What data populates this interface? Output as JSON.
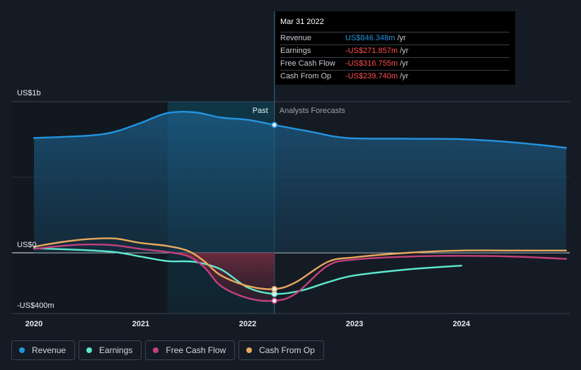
{
  "chart_data": {
    "type": "area",
    "y_unit": "US$m",
    "ylim": [
      -400,
      1000
    ],
    "xlim": [
      2019.9,
      2024.98
    ],
    "y_axis_labels": [
      {
        "label": "US$1b",
        "value": 1000
      },
      {
        "label": "US$0",
        "value": 0
      },
      {
        "label": "-US$400m",
        "value": -400
      }
    ],
    "x_tick_labels": [
      {
        "label": "2020",
        "value": 2020.0
      },
      {
        "label": "2021",
        "value": 2021.0
      },
      {
        "label": "2022",
        "value": 2022.0
      },
      {
        "label": "2023",
        "value": 2023.0
      },
      {
        "label": "2024",
        "value": 2024.0
      }
    ],
    "highlight_range": [
      2021.25,
      2022.25
    ],
    "divider_x": 2022.25,
    "past_label": "Past",
    "forecast_label": "Analysts Forecasts",
    "series": [
      {
        "name": "Revenue",
        "color": "#2394df",
        "x": [
          2020.0,
          2020.5,
          2020.75,
          2021.0,
          2021.25,
          2021.5,
          2021.75,
          2022.0,
          2022.25,
          2022.6,
          2022.93,
          2023.5,
          2024.0,
          2024.5,
          2024.98
        ],
        "y": [
          760,
          775,
          800,
          860,
          925,
          930,
          895,
          880,
          846,
          800,
          760,
          755,
          752,
          730,
          695
        ]
      },
      {
        "name": "Earnings",
        "color": "#5ee8d0",
        "x": [
          2020.0,
          2020.4,
          2020.75,
          2021.0,
          2021.25,
          2021.5,
          2021.75,
          2022.0,
          2022.25,
          2022.5,
          2022.75,
          2023.0,
          2023.5,
          2024.0
        ],
        "y": [
          30,
          20,
          5,
          -25,
          -55,
          -60,
          -110,
          -230,
          -272,
          -250,
          -195,
          -150,
          -110,
          -85
        ]
      },
      {
        "name": "Free Cash Flow",
        "color": "#c2407f",
        "x": [
          2020.0,
          2020.25,
          2020.5,
          2020.75,
          2021.0,
          2021.25,
          2021.45,
          2021.6,
          2021.75,
          2022.0,
          2022.25,
          2022.45,
          2022.75,
          2023.0,
          2023.5,
          2024.0,
          2024.5,
          2024.98
        ],
        "y": [
          25,
          45,
          55,
          50,
          25,
          5,
          -25,
          -100,
          -220,
          -300,
          -317,
          -270,
          -85,
          -45,
          -25,
          -20,
          -25,
          -40
        ]
      },
      {
        "name": "Cash From Op",
        "color": "#e9a85c",
        "x": [
          2020.0,
          2020.25,
          2020.5,
          2020.75,
          2021.0,
          2021.25,
          2021.45,
          2021.6,
          2021.75,
          2022.0,
          2022.25,
          2022.45,
          2022.75,
          2023.0,
          2023.5,
          2024.0,
          2024.5,
          2024.98
        ],
        "y": [
          40,
          70,
          90,
          95,
          65,
          45,
          10,
          -60,
          -150,
          -220,
          -240,
          -195,
          -60,
          -30,
          0,
          15,
          15,
          15
        ]
      }
    ]
  },
  "tooltip": {
    "date": "Mar 31 2022",
    "unit": "/yr",
    "rows": [
      {
        "label": "Revenue",
        "value": "US$846.348m",
        "color": "#2394df"
      },
      {
        "label": "Earnings",
        "value": "-US$271.857m",
        "color": "#ff4d4d"
      },
      {
        "label": "Free Cash Flow",
        "value": "-US$316.755m",
        "color": "#ff4d4d"
      },
      {
        "label": "Cash From Op",
        "value": "-US$239.740m",
        "color": "#ff4d4d"
      }
    ]
  },
  "legend": [
    {
      "label": "Revenue",
      "color": "#2394df"
    },
    {
      "label": "Earnings",
      "color": "#5ee8d0"
    },
    {
      "label": "Free Cash Flow",
      "color": "#c2407f"
    },
    {
      "label": "Cash From Op",
      "color": "#e9a85c"
    }
  ]
}
